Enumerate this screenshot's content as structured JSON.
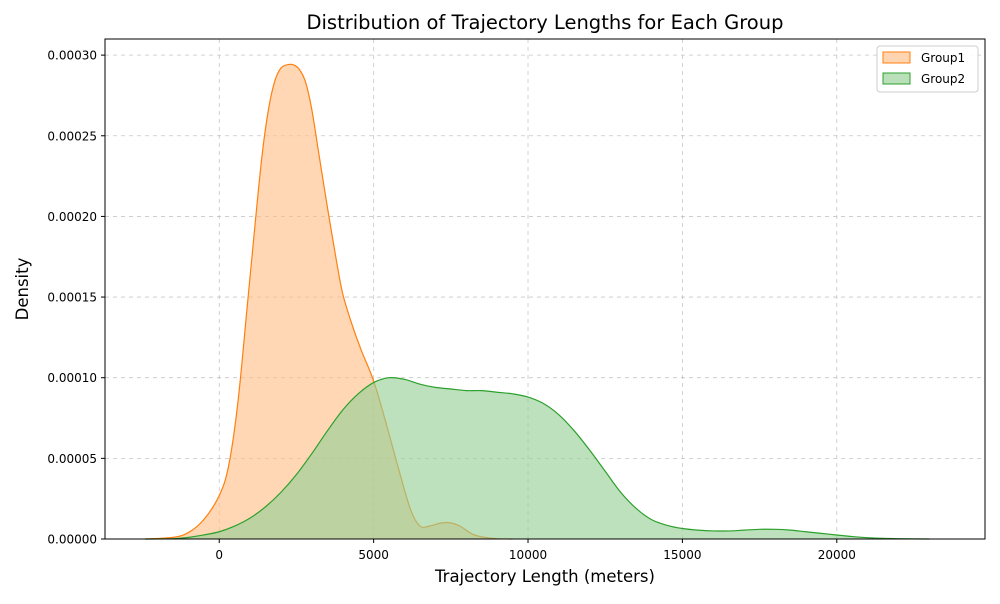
{
  "chart_data": {
    "type": "area",
    "title": "Distribution of Trajectory Lengths for Each Group",
    "xlabel": "Trajectory Length (meters)",
    "ylabel": "Density",
    "xlim": [
      -3700,
      24800
    ],
    "ylim": [
      0,
      0.00031
    ],
    "x_ticks": [
      0,
      5000,
      10000,
      15000,
      20000
    ],
    "x_tick_labels": [
      "0",
      "5000",
      "10000",
      "15000",
      "20000"
    ],
    "y_ticks": [
      0,
      5e-05,
      0.0001,
      0.00015,
      0.0002,
      0.00025,
      0.0003
    ],
    "y_tick_labels": [
      "0.00000",
      "0.00005",
      "0.00010",
      "0.00015",
      "0.00020",
      "0.00025",
      "0.00030"
    ],
    "grid": true,
    "legend_position": "top-right",
    "series": [
      {
        "name": "Group1",
        "line_color": "#ff7f0e",
        "fill_color": "#ffbf87",
        "x": [
          -2400,
          -1500,
          -1000,
          -500,
          0,
          300,
          600,
          900,
          1200,
          1400,
          1600,
          1800,
          2000,
          2200,
          2400,
          2600,
          2800,
          3000,
          3200,
          3500,
          3800,
          4000,
          4300,
          4600,
          5000,
          5400,
          5800,
          6200,
          6500,
          6800,
          7200,
          7500,
          7800,
          8200,
          8600,
          9000,
          9500
        ],
        "y": [
          0,
          1e-06,
          4e-06,
          1.2e-05,
          2.7e-05,
          4.5e-05,
          8.4e-05,
          0.000143,
          0.000203,
          0.00024,
          0.000267,
          0.000284,
          0.000292,
          0.000294,
          0.000294,
          0.000291,
          0.000283,
          0.000266,
          0.000242,
          0.000206,
          0.000172,
          0.000152,
          0.000133,
          0.000117,
          9.8e-05,
          7.2e-05,
          4.4e-05,
          1.8e-05,
          8e-06,
          8e-06,
          1e-05,
          1e-05,
          8e-06,
          3e-06,
          1e-06,
          2e-07,
          0
        ]
      },
      {
        "name": "Group2",
        "line_color": "#2ca02c",
        "fill_color": "#95cf95",
        "x": [
          -2400,
          -1500,
          -1000,
          -500,
          0,
          500,
          1000,
          1500,
          2000,
          2500,
          3000,
          3500,
          4000,
          4500,
          5000,
          5500,
          6000,
          6500,
          7000,
          7500,
          8000,
          8500,
          9000,
          9500,
          10000,
          10500,
          11000,
          11500,
          12000,
          12500,
          13000,
          13500,
          14000,
          14500,
          15000,
          15500,
          16000,
          16500,
          17000,
          17500,
          18000,
          18500,
          19000,
          19500,
          20000,
          20500,
          21000,
          21500,
          22000,
          23000
        ],
        "y": [
          0,
          2e-07,
          1e-06,
          2.5e-06,
          4.5e-06,
          8e-06,
          1.3e-05,
          2e-05,
          2.9e-05,
          4e-05,
          5.3e-05,
          6.7e-05,
          8e-05,
          9e-05,
          9.7e-05,
          0.0001,
          9.9e-05,
          9.6e-05,
          9.4e-05,
          9.3e-05,
          9.2e-05,
          9.2e-05,
          9.1e-05,
          9e-05,
          8.8e-05,
          8.4e-05,
          7.7e-05,
          6.7e-05,
          5.5e-05,
          4.2e-05,
          2.9e-05,
          1.9e-05,
          1.2e-05,
          8.5e-06,
          6.5e-06,
          5.5e-06,
          5e-06,
          5e-06,
          5.5e-06,
          6e-06,
          6e-06,
          5.5e-06,
          4.5e-06,
          3.5e-06,
          2.5e-06,
          1.5e-06,
          8e-07,
          4e-07,
          2e-07,
          0
        ]
      }
    ]
  }
}
